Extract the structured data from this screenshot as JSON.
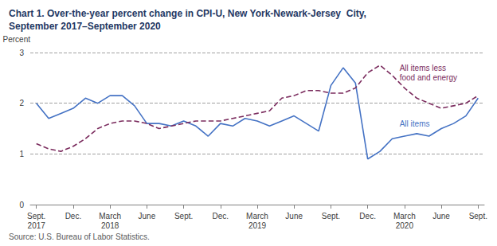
{
  "chart_data": {
    "type": "line",
    "title": "Chart 1. Over-the-year percent change in CPI-U, New York-Newark-Jersey  City,\nSeptember 2017–September 2020",
    "y_label": "Percent",
    "source": "Source: U.S. Bureau of Labor Statistics.",
    "categories": [
      "Sept.\n2017",
      null,
      null,
      "Dec.",
      null,
      null,
      "March\n2018",
      null,
      null,
      "June",
      null,
      null,
      "Sept.",
      null,
      null,
      "Dec.",
      null,
      null,
      "March\n2019",
      null,
      null,
      "June",
      null,
      null,
      "Sept.",
      null,
      null,
      "Dec.",
      null,
      null,
      "March\n2020",
      null,
      null,
      "June",
      null,
      null,
      "Sept."
    ],
    "series": [
      {
        "name": "All items",
        "color": "#4472C4",
        "line_style": "solid",
        "values": [
          2.0,
          1.7,
          1.8,
          1.9,
          2.1,
          2.0,
          2.15,
          2.15,
          1.95,
          1.6,
          1.6,
          1.55,
          1.65,
          1.55,
          1.35,
          1.6,
          1.55,
          1.7,
          1.65,
          1.55,
          1.65,
          1.75,
          1.6,
          1.45,
          2.35,
          2.7,
          2.4,
          0.9,
          1.05,
          1.3,
          1.35,
          1.4,
          1.35,
          1.5,
          1.6,
          1.75,
          2.1
        ]
      },
      {
        "name": "All items less\nfood and energy",
        "color": "#7B2C5E",
        "line_style": "dashed",
        "values": [
          1.2,
          1.1,
          1.05,
          1.15,
          1.3,
          1.5,
          1.6,
          1.65,
          1.65,
          1.6,
          1.5,
          1.55,
          1.6,
          1.65,
          1.65,
          1.65,
          1.7,
          1.75,
          1.8,
          1.85,
          2.1,
          2.15,
          2.25,
          2.25,
          2.2,
          2.2,
          2.3,
          2.6,
          2.75,
          2.55,
          2.3,
          2.1,
          2.0,
          1.9,
          1.95,
          2.0,
          2.15
        ]
      }
    ],
    "ylim": [
      0,
      3
    ],
    "yticks": [
      0,
      1,
      2,
      3
    ],
    "grid": true
  }
}
